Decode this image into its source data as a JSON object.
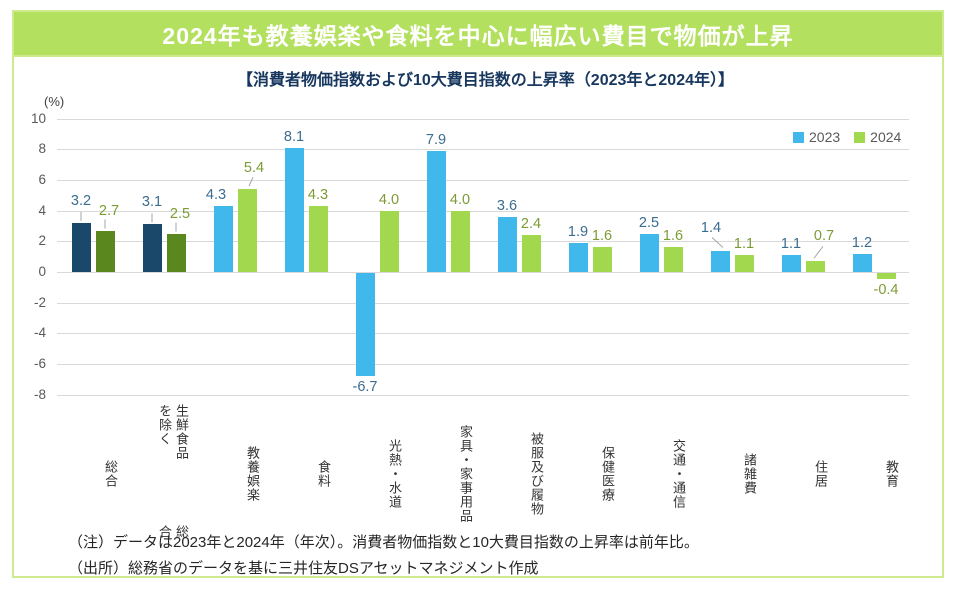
{
  "banner": {
    "title": "2024年も教養娯楽や食料を中心に幅広い費目で物価が上昇"
  },
  "subtitle": "【消費者物価指数および10大費目指数の上昇率（2023年と2024年）】",
  "notes": [
    "（注）データは2023年と2024年（年次）。消費者物価指数と10大費目指数の上昇率は前年比。",
    "（出所）総務省のデータを基に三井住友DSアセットマネジメント作成"
  ],
  "colors": {
    "banner_green": "#b3e05e",
    "frame_green": "#cdea8d",
    "grid": "#d9d9d9",
    "leader": "#a6a6a6"
  },
  "chart_data": {
    "type": "bar",
    "title": "消費者物価指数および10大費目指数の上昇率（2023年と2024年）",
    "unit_label": "(%)",
    "ylabel": "%",
    "ylim": [
      -8,
      10
    ],
    "ytick_step": 2,
    "grid": true,
    "legend_position": "top-right",
    "legend": [
      {
        "name": "2023",
        "color": "#41b8ec"
      },
      {
        "name": "2024",
        "color": "#a2d84d"
      }
    ],
    "categories": [
      {
        "label": "総合",
        "lines": [
          "総合"
        ]
      },
      {
        "label": "生鮮食品を除く総合",
        "lines": [
          "生鮮食品を除く",
          "総合"
        ]
      },
      {
        "label": "教養娯楽",
        "lines": [
          "教養娯楽"
        ]
      },
      {
        "label": "食料",
        "lines": [
          "食料"
        ]
      },
      {
        "label": "光熱・水道",
        "lines": [
          "光熱・水道"
        ]
      },
      {
        "label": "家具・家事用品",
        "lines": [
          "家具・家事用品"
        ]
      },
      {
        "label": "被服及び履物",
        "lines": [
          "被服及び履物"
        ]
      },
      {
        "label": "保健医療",
        "lines": [
          "保健医療"
        ]
      },
      {
        "label": "交通・通信",
        "lines": [
          "交通・通信"
        ]
      },
      {
        "label": "諸雑費",
        "lines": [
          "諸雑費"
        ]
      },
      {
        "label": "住居",
        "lines": [
          "住居"
        ]
      },
      {
        "label": "教育",
        "lines": [
          "教育"
        ]
      }
    ],
    "series": [
      {
        "name": "2023",
        "color": "#41b8ec",
        "dark_color": "#19486a",
        "label_color": "#3a6d8f",
        "values": [
          3.2,
          3.1,
          4.3,
          8.1,
          -6.7,
          7.9,
          3.6,
          1.9,
          2.5,
          1.4,
          1.1,
          1.2
        ]
      },
      {
        "name": "2024",
        "color": "#a2d84d",
        "dark_color": "#5b871f",
        "label_color": "#7d9b35",
        "values": [
          2.7,
          2.5,
          5.4,
          4.3,
          4.0,
          4.0,
          2.4,
          1.6,
          1.6,
          1.1,
          0.7,
          -0.4
        ]
      }
    ],
    "dark_categories": [
      0,
      1
    ],
    "label_offsets": {
      "0-0": [
        0,
        -11
      ],
      "0-1": [
        4,
        -9
      ],
      "1-0": [
        0,
        -11
      ],
      "1-1": [
        4,
        -9
      ],
      "2-0": [
        -7,
        0
      ],
      "2-1": [
        7,
        -10
      ],
      "9-0": [
        -9,
        -12
      ],
      "10-1": [
        9,
        -14
      ]
    },
    "label_leaders": [
      {
        "cat": 0,
        "series": 0,
        "type": "v"
      },
      {
        "cat": 0,
        "series": 1,
        "type": "v"
      },
      {
        "cat": 1,
        "series": 0,
        "type": "v"
      },
      {
        "cat": 1,
        "series": 1,
        "type": "v"
      },
      {
        "cat": 2,
        "series": 1,
        "type": "slant"
      },
      {
        "cat": 9,
        "series": 0,
        "type": "down-right"
      },
      {
        "cat": 10,
        "series": 1,
        "type": "down-left"
      }
    ]
  }
}
